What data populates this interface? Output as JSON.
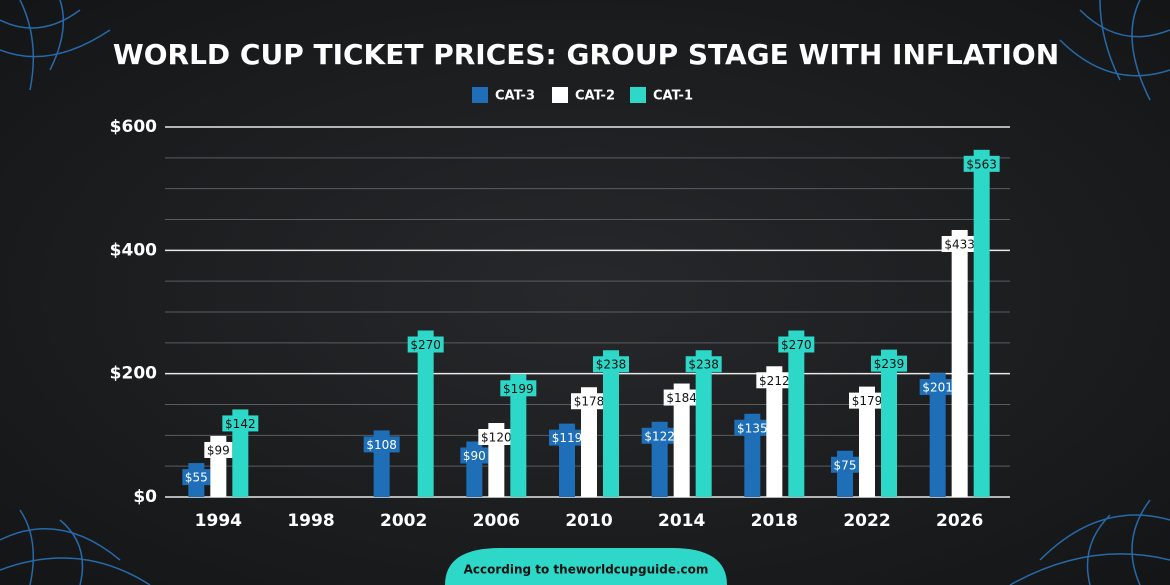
{
  "chart_data": {
    "type": "bar",
    "title": "WORLD CUP TICKET PRICES: GROUP STAGE WITH INFLATION",
    "categories": [
      "1994",
      "1998",
      "2002",
      "2006",
      "2010",
      "2014",
      "2018",
      "2022",
      "2026"
    ],
    "series": [
      {
        "name": "CAT-3",
        "color": "#1e6fb8",
        "values": [
          55,
          null,
          108,
          90,
          119,
          122,
          135,
          75,
          201
        ],
        "value_labels": [
          "$55",
          null,
          "$108",
          "$90",
          "$119",
          "$122",
          "$135",
          "$75",
          "$201"
        ]
      },
      {
        "name": "CAT-2",
        "color": "#ffffff",
        "values": [
          99,
          null,
          null,
          120,
          178,
          184,
          212,
          179,
          433
        ],
        "value_labels": [
          "$99",
          null,
          null,
          "$120",
          "$178",
          "$184",
          "$212",
          "$179",
          "$433"
        ]
      },
      {
        "name": "CAT-1",
        "color": "#2ed8c8",
        "values": [
          142,
          null,
          270,
          199,
          238,
          238,
          270,
          239,
          563
        ],
        "value_labels": [
          "$142",
          null,
          "$270",
          "$199",
          "$238",
          "$238",
          "$270",
          "$239",
          "$563"
        ]
      }
    ],
    "ylim": [
      0,
      600
    ],
    "yticks": [
      {
        "value": 0,
        "label": "$0"
      },
      {
        "value": 200,
        "label": "$200"
      },
      {
        "value": 400,
        "label": "$400"
      },
      {
        "value": 600,
        "label": "$600"
      }
    ],
    "minor_yticks": [
      50,
      100,
      150,
      250,
      300,
      350,
      450,
      500,
      550
    ],
    "grid": true,
    "legend": "top",
    "source": "According to theworldcupguide.com"
  }
}
